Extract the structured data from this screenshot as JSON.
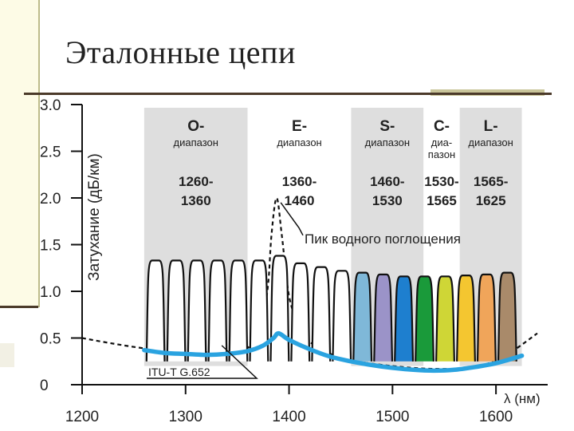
{
  "slide": {
    "title": "Эталонные цепи"
  },
  "chart_data": {
    "type": "line",
    "xlabel": "λ (нм)",
    "ylabel": "Затухание (дБ/км)",
    "xlim": [
      1200,
      1650
    ],
    "ylim": [
      0,
      3.0
    ],
    "xticks": [
      "1200",
      "1300",
      "1400",
      "1500",
      "1600"
    ],
    "yticks": [
      "0",
      "0.5",
      "1.0",
      "1.5",
      "2.0",
      "2.5",
      "3.0"
    ],
    "bands": [
      {
        "letter": "O-",
        "word": "диапазон",
        "range1": "1260-",
        "range2": "1360",
        "from": 1260,
        "to": 1360
      },
      {
        "letter": "E-",
        "word": "диапазон",
        "range1": "1360-",
        "range2": "1460",
        "from": 1360,
        "to": 1460
      },
      {
        "letter": "S-",
        "word": "диапазон",
        "range1": "1460-",
        "range2": "1530",
        "from": 1460,
        "to": 1530
      },
      {
        "letter": "C-",
        "word": "диа-",
        "word2": "пазон",
        "range1": "1530-",
        "range2": "1565",
        "from": 1530,
        "to": 1565
      },
      {
        "letter": "L-",
        "word": "диапазон",
        "range1": "1565-",
        "range2": "1625",
        "from": 1565,
        "to": 1625
      }
    ],
    "series": [
      {
        "name": "ITU-T G.652",
        "x": [
          1260,
          1280,
          1300,
          1320,
          1340,
          1360,
          1375,
          1385,
          1390,
          1400,
          1420,
          1440,
          1460,
          1480,
          1500,
          1520,
          1540,
          1560,
          1580,
          1600,
          1625
        ],
        "y": [
          0.37,
          0.34,
          0.33,
          0.32,
          0.33,
          0.36,
          0.42,
          0.5,
          0.55,
          0.48,
          0.38,
          0.3,
          0.25,
          0.21,
          0.18,
          0.16,
          0.15,
          0.16,
          0.19,
          0.23,
          0.31
        ]
      },
      {
        "name": "",
        "x": [
          1200,
          1230,
          1260,
          1290,
          1320,
          1350,
          1365,
          1375,
          1380,
          1383,
          1388,
          1393,
          1400,
          1410,
          1420,
          1440,
          1460,
          1500,
          1540,
          1580,
          1610,
          1640
        ],
        "y": [
          0.5,
          0.44,
          0.39,
          0.36,
          0.35,
          0.36,
          0.45,
          0.75,
          1.1,
          1.6,
          2.0,
          1.6,
          0.95,
          0.62,
          0.46,
          0.33,
          0.26,
          0.2,
          0.17,
          0.19,
          0.32,
          0.55
        ]
      }
    ],
    "channels": {
      "centers": [
        1271,
        1291,
        1311,
        1331,
        1351,
        1371,
        1391,
        1411,
        1431,
        1451,
        1471,
        1491,
        1511,
        1531,
        1551,
        1571,
        1591,
        1611
      ],
      "peaks": [
        1.33,
        1.33,
        1.33,
        1.33,
        1.33,
        1.33,
        1.38,
        1.3,
        1.26,
        1.22,
        1.2,
        1.18,
        1.16,
        1.16,
        1.16,
        1.17,
        1.18,
        1.2
      ],
      "colors": [
        "#ffffff",
        "#ffffff",
        "#ffffff",
        "#ffffff",
        "#ffffff",
        "#ffffff",
        "#ffffff",
        "#ffffff",
        "#ffffff",
        "#ffffff",
        "#7fb8d8",
        "#9b93c8",
        "#1e7fcf",
        "#1a9a3a",
        "#cfd636",
        "#f4c630",
        "#f0a55a",
        "#a98a6a"
      ]
    },
    "annotations": [
      {
        "text": "Пик водного поглощения"
      },
      {
        "text": "ITU-T G.652"
      }
    ]
  }
}
